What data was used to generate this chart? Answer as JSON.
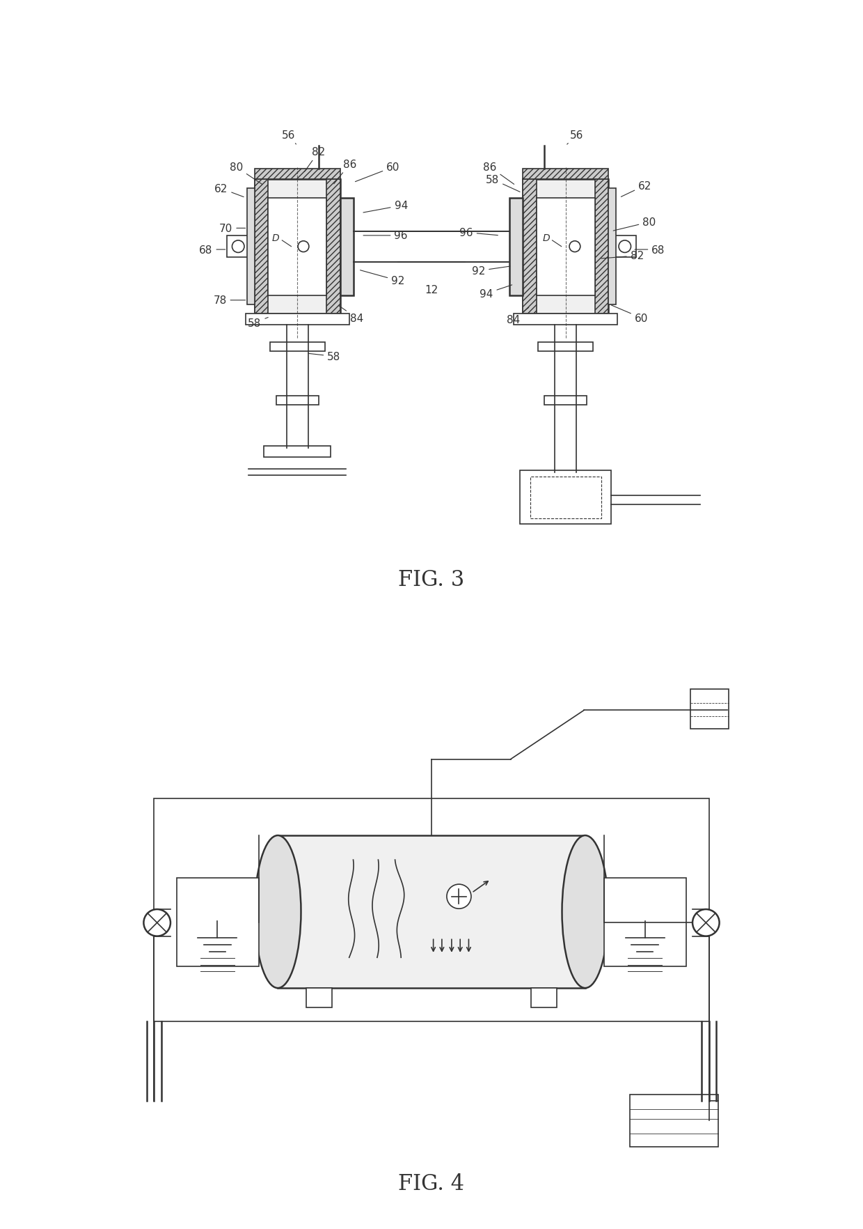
{
  "background_color": "#ffffff",
  "line_color": "#333333",
  "fig3_label": "FIG. 3",
  "fig4_label": "FIG. 4",
  "font_size_label": 22,
  "font_size_ref": 11
}
